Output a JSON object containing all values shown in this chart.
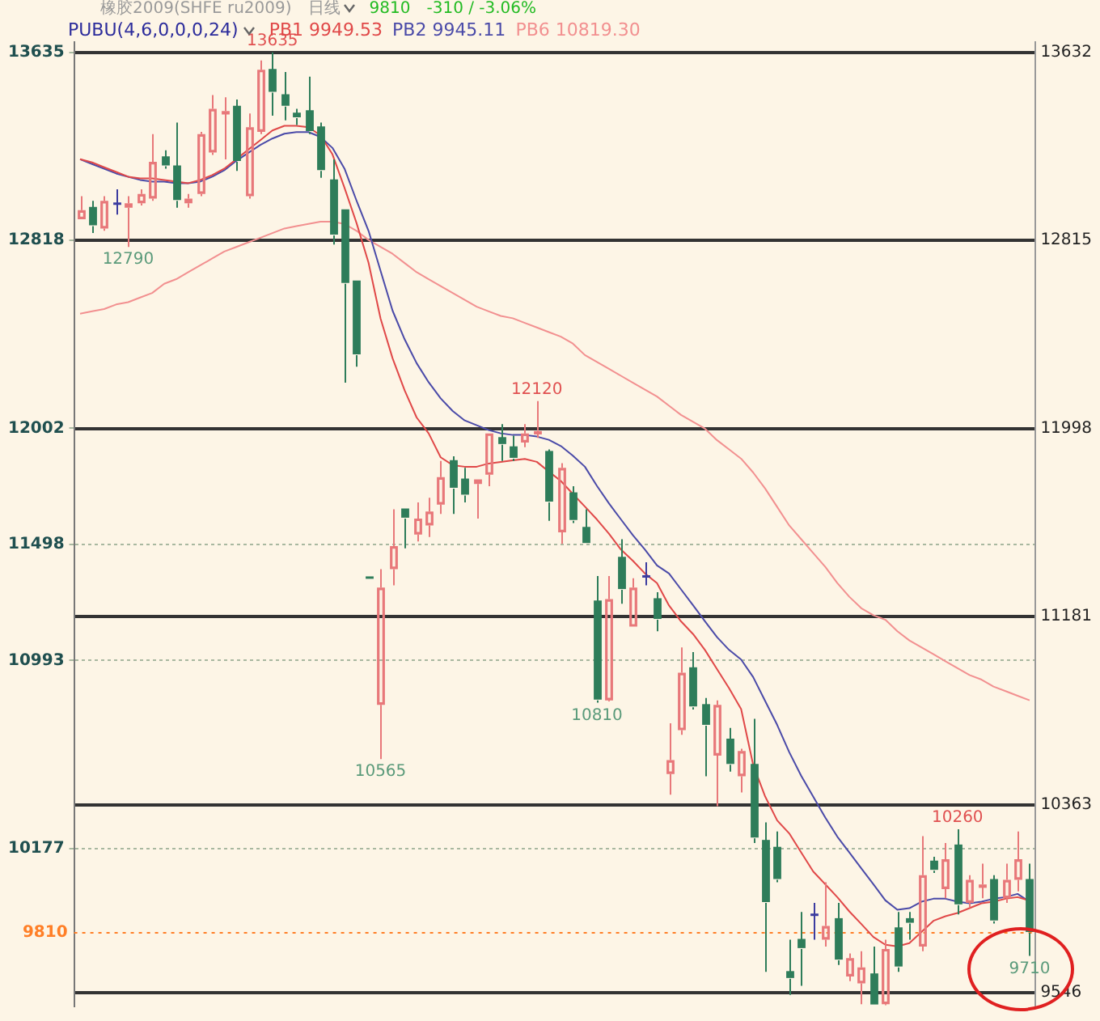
{
  "chart_data": {
    "type": "candlestick",
    "title": "橡胶2009(SHFE ru2009)",
    "subtitle": "日线",
    "legend_title": "PUBU(4,6,0,0,0,24)",
    "annotations": [
      "9810",
      "-310 / -3.06%",
      {
        "text": "13635",
        "y": 13635
      },
      {
        "text": "12790",
        "y": 12790
      },
      {
        "text": "12120",
        "y": 12120
      },
      {
        "text": "10810",
        "y": 10810
      },
      {
        "text": "10565",
        "y": 10565
      },
      {
        "text": "10260",
        "y": 10260
      },
      {
        "text": "9710",
        "y": 9710
      }
    ],
    "categories": [
      null,
      null,
      null,
      null,
      null,
      null,
      null,
      null,
      null,
      null,
      null,
      null,
      null,
      null,
      null,
      null,
      null,
      null,
      null,
      null,
      null,
      null,
      null,
      null,
      null,
      null,
      null,
      null,
      null,
      null,
      null,
      null,
      null,
      null,
      null,
      null,
      null,
      null,
      null,
      null,
      null,
      null,
      null,
      null,
      null,
      null,
      null,
      null,
      null,
      null,
      null,
      null,
      null,
      null,
      null,
      null,
      null,
      null,
      null,
      null,
      null,
      null,
      null,
      null,
      null,
      null,
      null,
      null,
      null,
      null,
      null,
      null,
      null,
      null,
      null,
      null,
      null,
      null,
      null,
      null
    ],
    "ohlc": [
      [
        12910,
        13010,
        12910,
        12950
      ],
      [
        12960,
        12990,
        12850,
        12880
      ],
      [
        12870,
        13010,
        12860,
        12990
      ],
      [
        12980,
        13040,
        12930,
        12980
      ],
      [
        12960,
        13010,
        12790,
        12980
      ],
      [
        12980,
        13040,
        12970,
        13020
      ],
      [
        13000,
        13280,
        12990,
        13160
      ],
      [
        13180,
        13210,
        13130,
        13140
      ],
      [
        13140,
        13330,
        12960,
        12990
      ],
      [
        12980,
        13020,
        12960,
        13000
      ],
      [
        13020,
        13290,
        13010,
        13280
      ],
      [
        13200,
        13450,
        13190,
        13390
      ],
      [
        13370,
        13440,
        13170,
        13380
      ],
      [
        13400,
        13430,
        13120,
        13160
      ],
      [
        13010,
        13370,
        13000,
        13310
      ],
      [
        13290,
        13600,
        13280,
        13560
      ],
      [
        13560,
        13635,
        13360,
        13460
      ],
      [
        13450,
        13550,
        13340,
        13400
      ],
      [
        13370,
        13390,
        13320,
        13350
      ],
      [
        13380,
        13530,
        13280,
        13290
      ],
      [
        13310,
        13330,
        13090,
        13120
      ],
      [
        13080,
        13170,
        12800,
        12840
      ],
      [
        12950,
        12950,
        12200,
        12630
      ],
      [
        12640,
        12640,
        12270,
        12320
      ],
      [
        11355,
        11355,
        11350,
        11350
      ],
      [
        10800,
        11390,
        10565,
        11310
      ],
      [
        11390,
        11650,
        11320,
        11490
      ],
      [
        11650,
        11650,
        11480,
        11610
      ],
      [
        11540,
        11680,
        11510,
        11610
      ],
      [
        11580,
        11700,
        11530,
        11640
      ],
      [
        11670,
        11860,
        11630,
        11790
      ],
      [
        11860,
        11880,
        11630,
        11740
      ],
      [
        11780,
        11830,
        11680,
        11710
      ],
      [
        11760,
        11780,
        11610,
        11780
      ],
      [
        11800,
        11980,
        11750,
        11980
      ],
      [
        11960,
        12020,
        11860,
        11930
      ],
      [
        11920,
        11970,
        11860,
        11870
      ],
      [
        11940,
        12020,
        11920,
        11980
      ],
      [
        11980,
        12120,
        11960,
        11990
      ],
      [
        11900,
        11910,
        11600,
        11680
      ],
      [
        11550,
        11850,
        11500,
        11830
      ],
      [
        11720,
        11750,
        11590,
        11600
      ],
      [
        11570,
        11650,
        11500,
        11500
      ],
      [
        11250,
        11360,
        10810,
        10820
      ],
      [
        10820,
        11360,
        10815,
        11260
      ],
      [
        11440,
        11520,
        11240,
        11300
      ],
      [
        11140,
        11350,
        11140,
        11310
      ],
      [
        11360,
        11420,
        11320,
        11360
      ],
      [
        11260,
        11290,
        11120,
        11170
      ],
      [
        10500,
        10720,
        10410,
        10560
      ],
      [
        10690,
        11050,
        10670,
        10940
      ],
      [
        10960,
        11030,
        10780,
        10790
      ],
      [
        10800,
        10830,
        10490,
        10710
      ],
      [
        10580,
        10820,
        10360,
        10800
      ],
      [
        10650,
        10700,
        10510,
        10540
      ],
      [
        10490,
        10610,
        10420,
        10600
      ],
      [
        10540,
        10740,
        10200,
        10220
      ],
      [
        10210,
        10290,
        9640,
        9940
      ],
      [
        10180,
        10250,
        10030,
        10040
      ],
      [
        9640,
        9780,
        9540,
        9610
      ],
      [
        9780,
        9900,
        9580,
        9740
      ],
      [
        9890,
        9940,
        9780,
        9890
      ],
      [
        9780,
        10030,
        9750,
        9840
      ],
      [
        9870,
        9940,
        9670,
        9690
      ],
      [
        9620,
        9720,
        9600,
        9700
      ],
      [
        9590,
        9730,
        9500,
        9660
      ],
      [
        9630,
        9750,
        9495,
        9495
      ],
      [
        9500,
        9780,
        9495,
        9740
      ],
      [
        9830,
        9900,
        9640,
        9660
      ],
      [
        9870,
        9900,
        9780,
        9850
      ],
      [
        9750,
        10230,
        9730,
        10060
      ],
      [
        10120,
        10140,
        10070,
        10080
      ],
      [
        10000,
        10200,
        9960,
        10130
      ],
      [
        10190,
        10260,
        9890,
        9930
      ],
      [
        9940,
        10060,
        9920,
        10040
      ],
      [
        10010,
        10110,
        9960,
        10020
      ],
      [
        10040,
        10060,
        9850,
        9860
      ],
      [
        9960,
        10110,
        9940,
        10040
      ],
      [
        10040,
        10250,
        9990,
        10130
      ],
      [
        10040,
        10110,
        9710,
        9810
      ]
    ],
    "colors": [
      "#e8787a",
      "#2e7d5a",
      "#e8787a",
      "#3c3ca0",
      "#e8787a",
      "#e8787a",
      "#e8787a",
      "#2e7d5a",
      "#2e7d5a",
      "#e8787a",
      "#e8787a",
      "#e8787a",
      "#e8787a",
      "#2e7d5a",
      "#e8787a",
      "#e8787a",
      "#2e7d5a",
      "#2e7d5a",
      "#2e7d5a",
      "#2e7d5a",
      "#2e7d5a",
      "#2e7d5a",
      "#2e7d5a",
      "#2e7d5a",
      "#2e7d5a",
      "#e8787a",
      "#e8787a",
      "#2e7d5a",
      "#e8787a",
      "#e8787a",
      "#e8787a",
      "#2e7d5a",
      "#2e7d5a",
      "#e8787a",
      "#e8787a",
      "#2e7d5a",
      "#2e7d5a",
      "#e8787a",
      "#e8787a",
      "#2e7d5a",
      "#e8787a",
      "#2e7d5a",
      "#2e7d5a",
      "#2e7d5a",
      "#e8787a",
      "#2e7d5a",
      "#e8787a",
      "#3c3ca0",
      "#2e7d5a",
      "#e8787a",
      "#e8787a",
      "#2e7d5a",
      "#2e7d5a",
      "#e8787a",
      "#2e7d5a",
      "#e8787a",
      "#2e7d5a",
      "#2e7d5a",
      "#2e7d5a",
      "#2e7d5a",
      "#2e7d5a",
      "#3c3ca0",
      "#e8787a",
      "#2e7d5a",
      "#e8787a",
      "#e8787a",
      "#2e7d5a",
      "#e8787a",
      "#2e7d5a",
      "#2e7d5a",
      "#e8787a",
      "#2e7d5a",
      "#e8787a",
      "#2e7d5a",
      "#e8787a",
      "#e8787a",
      "#2e7d5a",
      "#e8787a",
      "#e8787a",
      "#2e7d5a"
    ],
    "series": [
      {
        "type": "line",
        "name": "PB1 9949.53",
        "color": "#e04848",
        "values": [
          13171,
          13157,
          13136,
          13116,
          13095,
          13088,
          13088,
          13081,
          13074,
          13067,
          13081,
          13102,
          13130,
          13171,
          13213,
          13254,
          13296,
          13316,
          13316,
          13310,
          13275,
          13192,
          13047,
          12894,
          12721,
          12479,
          12306,
          12167,
          12049,
          11980,
          11876,
          11842,
          11835,
          11835,
          11849,
          11856,
          11863,
          11869,
          11856,
          11814,
          11773,
          11717,
          11662,
          11606,
          11544,
          11475,
          11426,
          11371,
          11329,
          11232,
          11163,
          11108,
          11038,
          10955,
          10872,
          10782,
          10540,
          10402,
          10298,
          10242,
          10159,
          10076,
          10021,
          9965,
          9903,
          9848,
          9792,
          9758,
          9751,
          9765,
          9813,
          9862,
          9882,
          9896,
          9917,
          9938,
          9945,
          9958,
          9965,
          9950
        ]
      },
      {
        "type": "line",
        "name": "PB2 9945.11",
        "color": "#4a4aa8",
        "values": [
          13171,
          13150,
          13130,
          13109,
          13095,
          13081,
          13074,
          13074,
          13067,
          13067,
          13074,
          13095,
          13123,
          13164,
          13199,
          13233,
          13261,
          13282,
          13289,
          13289,
          13268,
          13220,
          13130,
          12991,
          12860,
          12686,
          12513,
          12389,
          12285,
          12202,
          12132,
          12077,
          12036,
          12015,
          11994,
          11980,
          11973,
          11973,
          11966,
          11952,
          11925,
          11883,
          11835,
          11752,
          11676,
          11606,
          11537,
          11475,
          11406,
          11371,
          11302,
          11233,
          11163,
          11094,
          11039,
          10997,
          10921,
          10817,
          10713,
          10595,
          10492,
          10401,
          10311,
          10228,
          10159,
          10090,
          10021,
          9951,
          9910,
          9917,
          9945,
          9958,
          9958,
          9945,
          9938,
          9945,
          9958,
          9965,
          9979,
          9945
        ]
      },
      {
        "type": "line",
        "name": "PB6 10819.30",
        "color": "#f29090",
        "values": [
          12500,
          12510,
          12520,
          12540,
          12550,
          12570,
          12590,
          12630,
          12650,
          12680,
          12710,
          12740,
          12770,
          12790,
          12810,
          12830,
          12850,
          12870,
          12880,
          12890,
          12900,
          12900,
          12890,
          12860,
          12820,
          12790,
          12760,
          12720,
          12680,
          12650,
          12620,
          12590,
          12560,
          12530,
          12510,
          12490,
          12480,
          12460,
          12440,
          12420,
          12400,
          12370,
          12320,
          12290,
          12260,
          12230,
          12200,
          12170,
          12140,
          12100,
          12060,
          12030,
          12000,
          11950,
          11910,
          11870,
          11810,
          11740,
          11660,
          11580,
          11520,
          11460,
          11400,
          11330,
          11270,
          11220,
          11190,
          11170,
          11120,
          11080,
          11050,
          11020,
          10990,
          10960,
          10930,
          10910,
          10880,
          10860,
          10840,
          10820
        ]
      }
    ],
    "ylim": [
      9490,
      13680
    ],
    "yticks": [
      13635,
      12818,
      12002,
      11498,
      10993,
      10177
    ],
    "y2lim": [
      9487,
      13677
    ],
    "y2ticks": [
      13632,
      12815,
      11998,
      11181,
      10363,
      9546
    ],
    "ref_lines": [
      {
        "axis": "y",
        "value": 9810,
        "label": "9810",
        "color": "#ff7f27",
        "line_style": "dotted"
      }
    ],
    "grid": true,
    "legend": "top left",
    "marker": "none",
    "tick_labels": "y"
  }
}
